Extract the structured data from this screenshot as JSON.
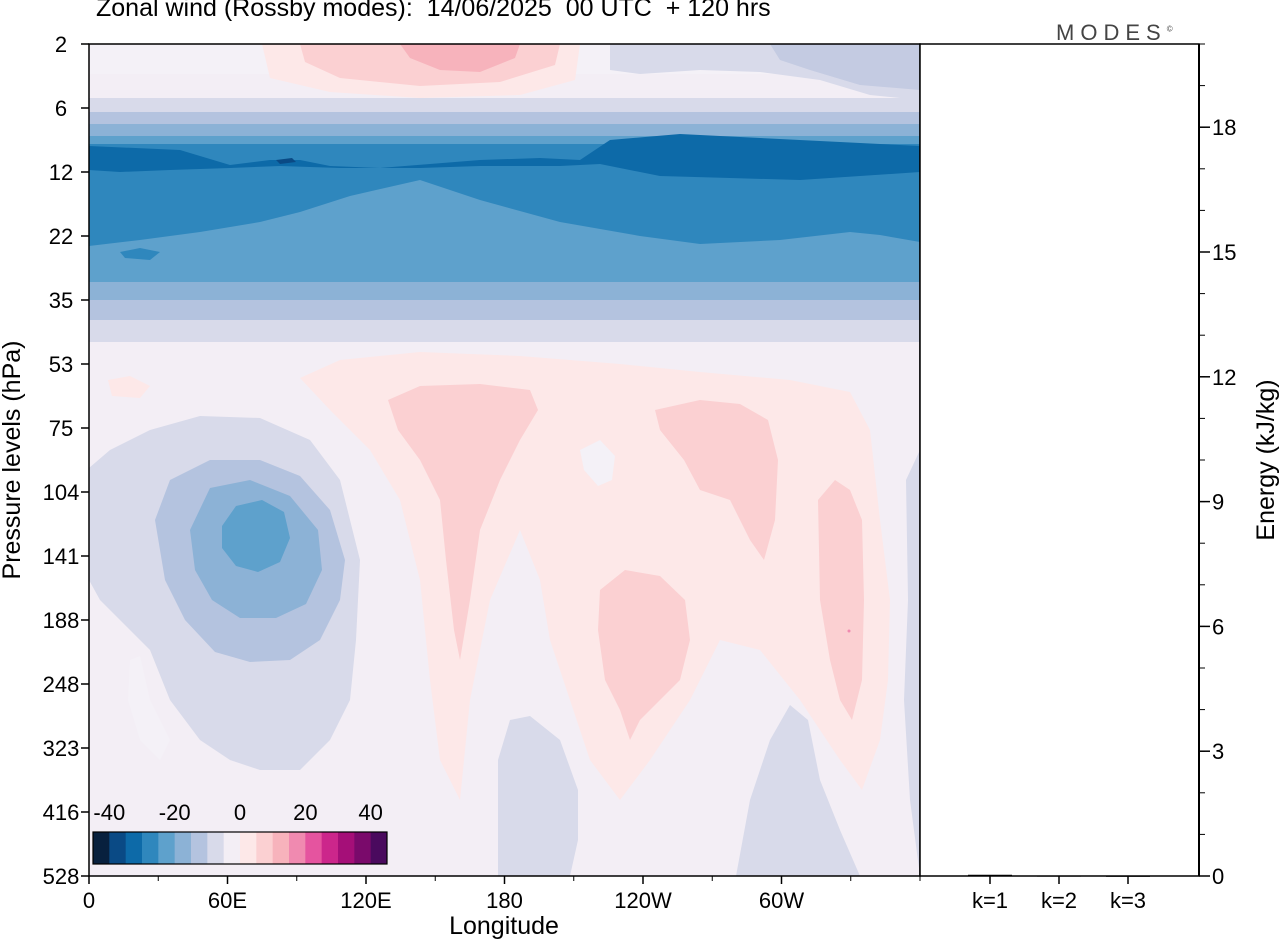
{
  "title": "Zonal wind (Rossby modes):  14/06/2025  00 UTC  + 120 hrs",
  "brand": "MODES",
  "brand_mark": "©",
  "chart_data": [
    {
      "type": "heatmap",
      "variable": "Zonal wind (Rossby modes)",
      "xlabel": "Longitude",
      "ylabel": "Pressure levels (hPa)",
      "x_ticks": [
        "0",
        "60E",
        "120E",
        "180",
        "120W",
        "60W"
      ],
      "x_range_deg": [
        0,
        360
      ],
      "y_ticks": [
        "2",
        "6",
        "12",
        "22",
        "35",
        "53",
        "75",
        "104",
        "141",
        "188",
        "248",
        "323",
        "416",
        "528"
      ],
      "y_axis": "pressure decreasing upward, log-like scale from 528 hPa (bottom) to 2 hPa (top)",
      "colorbar": {
        "labels": [
          "-40",
          "-20",
          "0",
          "20",
          "40"
        ],
        "range": [
          -45,
          45
        ],
        "step": 5,
        "colors": [
          "#08203e",
          "#0a4a85",
          "#0d6aa8",
          "#2f87bd",
          "#5ea1cc",
          "#8cb2d6",
          "#b4c3df",
          "#d8daea",
          "#f3eef5",
          "#fde8e8",
          "#fbd0d2",
          "#f7b3bc",
          "#f08ab0",
          "#e5549f",
          "#cc268b",
          "#a50f78",
          "#7a0a6b",
          "#4a0a5e"
        ]
      },
      "features": [
        {
          "label": "easterly jet",
          "pressure_hPa": [
            8,
            35
          ],
          "speed_ms": [
            -30,
            -15
          ],
          "extent": "all longitudes"
        },
        {
          "label": "weak westerlies",
          "pressure_hPa": [
            2,
            3
          ],
          "speed_ms": [
            5,
            10
          ],
          "longitude_deg": [
            60,
            200
          ]
        },
        {
          "label": "easterly minimum",
          "pressure_hPa": 141,
          "longitude_deg": 75,
          "speed_ms": -20
        },
        {
          "label": "westerly lobe",
          "pressure_hPa": [
            75,
            416
          ],
          "longitude_deg": [
            160,
            190
          ],
          "speed_ms": 5
        },
        {
          "label": "westerly lobe",
          "pressure_hPa": [
            141,
            323
          ],
          "longitude_deg": [
            225,
            250
          ],
          "speed_ms": 5
        },
        {
          "label": "westerly lobe",
          "pressure_hPa": [
            75,
            141
          ],
          "longitude_deg": [
            260,
            290
          ],
          "speed_ms": 5
        },
        {
          "label": "westerly lobe",
          "pressure_hPa": [
            104,
            323
          ],
          "longitude_deg": [
            315,
            335
          ],
          "speed_ms": 5
        }
      ]
    },
    {
      "type": "bar",
      "categories": [
        "k=1",
        "k=2",
        "k=3"
      ],
      "values": [
        0.03,
        0.01,
        0.005
      ],
      "ylabel": "Energy (kJ/kg)",
      "ylim": [
        0,
        20
      ],
      "y_ticks": [
        "0",
        "3",
        "6",
        "9",
        "12",
        "15",
        "18"
      ],
      "y_axis_side": "right"
    }
  ]
}
